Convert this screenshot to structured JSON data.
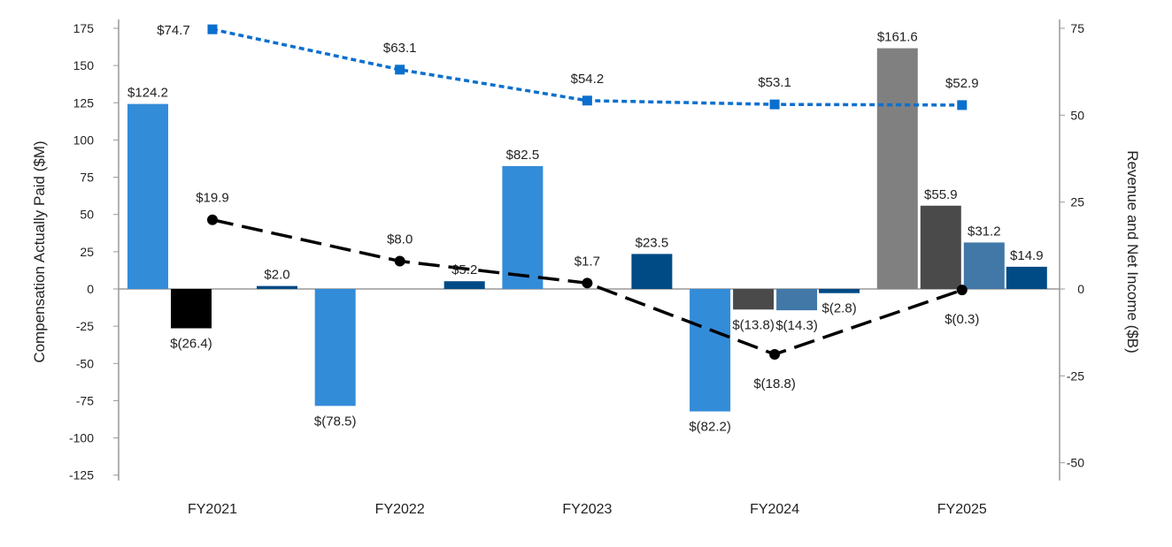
{
  "chart_data": {
    "type": "bar",
    "title": "",
    "categories": [
      "FY2021",
      "FY2022",
      "FY2023",
      "FY2024",
      "FY2025"
    ],
    "ylabel": "Compensation Actually Paid ($M)",
    "y2label": "Revenue and Net Income ($B)",
    "ylim": [
      -125,
      175
    ],
    "yticks": [
      175,
      150,
      125,
      100,
      75,
      50,
      25,
      0,
      -25,
      -50,
      -75,
      -100,
      -125
    ],
    "y2lim": [
      -50,
      75
    ],
    "y2ticks": [
      75,
      50,
      25,
      0,
      -25,
      -50
    ],
    "grid": false,
    "legend": "none",
    "bar_series": [
      {
        "values": [
          124.2,
          -78.5,
          82.5,
          -82.2,
          161.6
        ],
        "labels": [
          "$124.2",
          "$(78.5)",
          "$82.5",
          "$(82.2)",
          "$161.6"
        ],
        "colors": [
          "#338cd8",
          "#338cd8",
          "#338cd8",
          "#338cd8",
          "#808080"
        ]
      },
      {
        "values": [
          -26.4,
          null,
          null,
          -13.8,
          55.9
        ],
        "labels": [
          "$(26.4)",
          "",
          "",
          "$(13.8)",
          "$55.9"
        ],
        "colors": [
          "#000000",
          "#4a4a4a",
          "#4a4a4a",
          "#4a4a4a",
          "#4a4a4a"
        ]
      },
      {
        "values": [
          null,
          null,
          null,
          -14.3,
          31.2
        ],
        "labels": [
          "",
          "",
          "",
          "$(14.3)",
          "$31.2"
        ],
        "colors": [
          "#4178a8",
          "#4178a8",
          "#4178a8",
          "#4178a8",
          "#4178a8"
        ]
      },
      {
        "values": [
          2.0,
          5.2,
          23.5,
          -2.8,
          14.9
        ],
        "labels": [
          "$2.0",
          "$5.2",
          "$23.5",
          "$(2.8)",
          "$14.9"
        ],
        "colors": [
          "#004a85",
          "#004a85",
          "#004a85",
          "#004a85",
          "#004a85"
        ]
      }
    ],
    "line_series": [
      {
        "axis": "right",
        "style": "dotted-square",
        "color": "#0a6fce",
        "values": [
          74.7,
          63.1,
          54.2,
          53.1,
          52.9
        ],
        "labels": [
          "$74.7",
          "$63.1",
          "$54.2",
          "$53.1",
          "$52.9"
        ]
      },
      {
        "axis": "right",
        "style": "dashed-circle",
        "color": "#000000",
        "values": [
          19.9,
          8.0,
          1.7,
          -18.8,
          -0.3
        ],
        "labels": [
          "$19.9",
          "$8.0",
          "$1.7",
          "$(18.8)",
          "$(0.3)"
        ]
      }
    ]
  }
}
